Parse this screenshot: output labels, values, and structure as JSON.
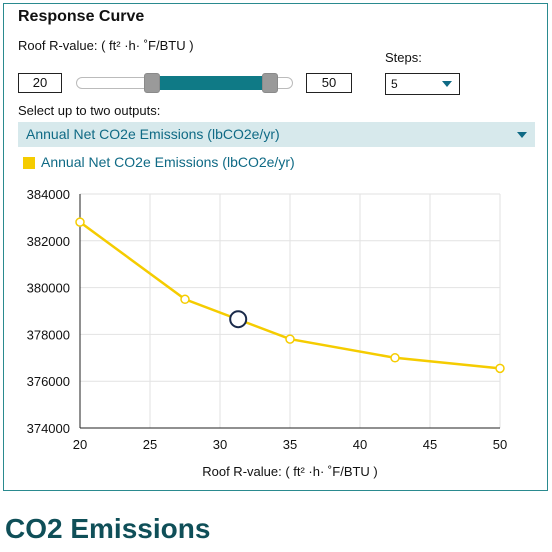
{
  "panel": {
    "title": "Response Curve",
    "range_label": "Roof R-value: ( ft² ·h· ˚F/BTU )",
    "min_value": "20",
    "max_value": "50",
    "slider": {
      "min": 20,
      "max": 50,
      "low": 20,
      "high": 50
    },
    "steps_label": "Steps:",
    "steps_value": "5",
    "outputs_label": "Select up to two outputs:",
    "output_selected": "Annual Net CO2e Emissions (lbCO2e/yr)",
    "legend_label": "Annual Net CO2e Emissions (lbCO2e/yr)"
  },
  "colors": {
    "accent": "#0f7a86",
    "series": "#f5cc00",
    "select_bg": "#d7e9ec",
    "heading": "#0f4f58"
  },
  "chart_data": {
    "type": "line",
    "xlabel": "Roof R-value: ( ft² ·h· ˚F/BTU )",
    "ylabel": "",
    "xlim": [
      20,
      50
    ],
    "ylim": [
      374000,
      384000
    ],
    "x_ticks": [
      20,
      25,
      30,
      35,
      40,
      45,
      50
    ],
    "y_ticks": [
      374000,
      376000,
      378000,
      380000,
      382000,
      384000
    ],
    "grid": true,
    "series": [
      {
        "name": "Annual Net CO2e Emissions (lbCO2e/yr)",
        "x": [
          20,
          27.5,
          35,
          42.5,
          50
        ],
        "y": [
          382800,
          379500,
          377800,
          377000,
          376550
        ]
      }
    ],
    "marker": {
      "x": 31.3,
      "y": 378650
    }
  },
  "page": {
    "heading": "CO2 Emissions"
  }
}
